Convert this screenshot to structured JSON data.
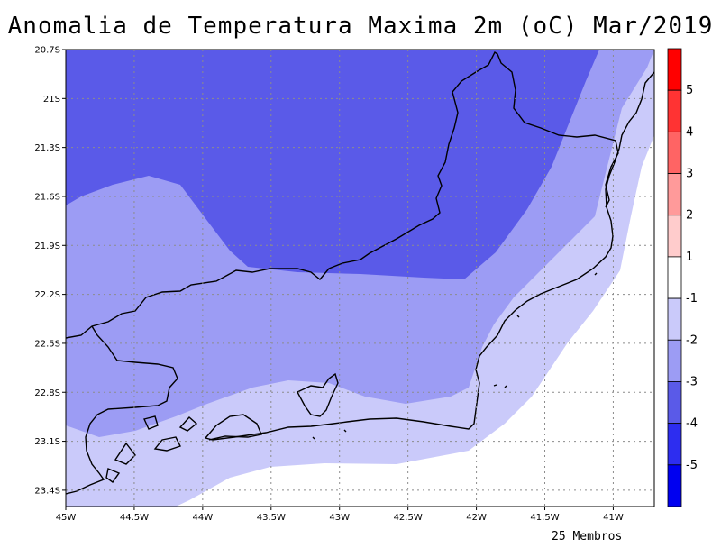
{
  "title": "Anomalia de Temperatura Maxima 2m (oC) Mar/2019",
  "footer": "25 Membros",
  "map": {
    "lon_range": [
      -45.0,
      -40.7
    ],
    "lat_range": [
      -23.5,
      -20.7
    ],
    "x_ticks": [
      {
        "lon": -45.0,
        "label": "45W"
      },
      {
        "lon": -44.5,
        "label": "44.5W"
      },
      {
        "lon": -44.0,
        "label": "44W"
      },
      {
        "lon": -43.5,
        "label": "43.5W"
      },
      {
        "lon": -43.0,
        "label": "43W"
      },
      {
        "lon": -42.5,
        "label": "42.5W"
      },
      {
        "lon": -42.0,
        "label": "42W"
      },
      {
        "lon": -41.5,
        "label": "41.5W"
      },
      {
        "lon": -41.0,
        "label": "41W"
      }
    ],
    "y_ticks": [
      {
        "lat": -20.7,
        "label": "20.7S"
      },
      {
        "lat": -21.0,
        "label": "21S"
      },
      {
        "lat": -21.3,
        "label": "21.3S"
      },
      {
        "lat": -21.6,
        "label": "21.6S"
      },
      {
        "lat": -21.9,
        "label": "21.9S"
      },
      {
        "lat": -22.2,
        "label": "22.2S"
      },
      {
        "lat": -22.5,
        "label": "22.5S"
      },
      {
        "lat": -22.8,
        "label": "22.8S"
      },
      {
        "lat": -23.1,
        "label": "23.1S"
      },
      {
        "lat": -23.4,
        "label": "23.4S"
      }
    ],
    "grid": true,
    "fill_colors": {
      "lt_-3": "#5a5ae8",
      "-3_-2": "#9c9cf4",
      "-2_-1": "#cacafa",
      "-1_1": "#ffffff"
    }
  },
  "colorbar": {
    "classes": [
      {
        "color": "#ff0000"
      },
      {
        "color": "#ff3333"
      },
      {
        "color": "#ff6464"
      },
      {
        "color": "#ff9a9a"
      },
      {
        "color": "#ffcccc"
      },
      {
        "color": "#ffffff"
      },
      {
        "color": "#cacafa"
      },
      {
        "color": "#9c9cf4"
      },
      {
        "color": "#5a5ae8"
      },
      {
        "color": "#2d2df0"
      },
      {
        "color": "#0000f0"
      }
    ],
    "labels": [
      "5",
      "4",
      "3",
      "2",
      "1",
      "-1",
      "-2",
      "-3",
      "-4",
      "-5"
    ]
  }
}
